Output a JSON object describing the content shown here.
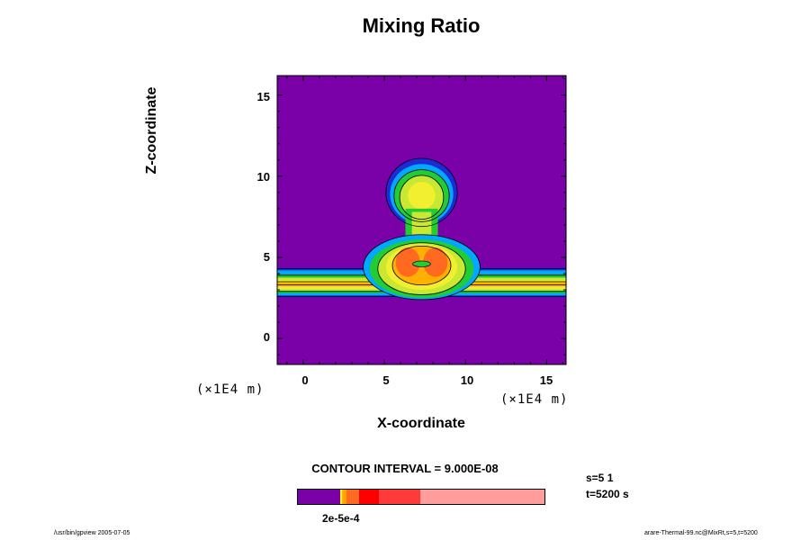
{
  "chart_data": {
    "type": "heatmap",
    "title": "Mixing Ratio",
    "xlabel": "X-coordinate",
    "ylabel": "Z-coordinate",
    "x_units": "(×1E4 m)",
    "y_units": "(×1E4 m)",
    "xlim": [
      -1.6,
      16.2
    ],
    "ylim": [
      -1.6,
      16.2
    ],
    "x_ticks": [
      "0",
      "5",
      "10",
      "15"
    ],
    "y_ticks": [
      "0",
      "5",
      "10",
      "15"
    ],
    "x_tick_values": [
      0,
      5,
      10,
      15
    ],
    "y_tick_values": [
      0,
      5,
      10,
      15
    ],
    "contour_interval": "CONTOUR INTERVAL = 9.000E-08",
    "colorbar_label": "2e-5e-4",
    "colors": [
      "#7a00a8",
      "#1c2bd6",
      "#00a8ff",
      "#22cc33",
      "#c8e832",
      "#f2ee30",
      "#ffb000",
      "#ff6a20",
      "#ff3a3a",
      "#ff9c9c"
    ],
    "features": [
      {
        "name": "horizontal-layer",
        "x_range": [
          -1.6,
          16.2
        ],
        "z_range": [
          2.6,
          4.3
        ]
      },
      {
        "name": "thermal-column",
        "x_center": 7.2,
        "z_range": [
          2.6,
          11.0
        ]
      },
      {
        "name": "thermal-cap",
        "x_center": 7.3,
        "z_center": 8.8
      }
    ]
  },
  "annotations": {
    "time_step": "s=5 1",
    "time": "t=5200 s"
  },
  "footer": {
    "left": "/usr/bin/gpview 2005-07-05",
    "right": "arare-Thermal-99.nc@MixRt,s=5,t=5200"
  }
}
